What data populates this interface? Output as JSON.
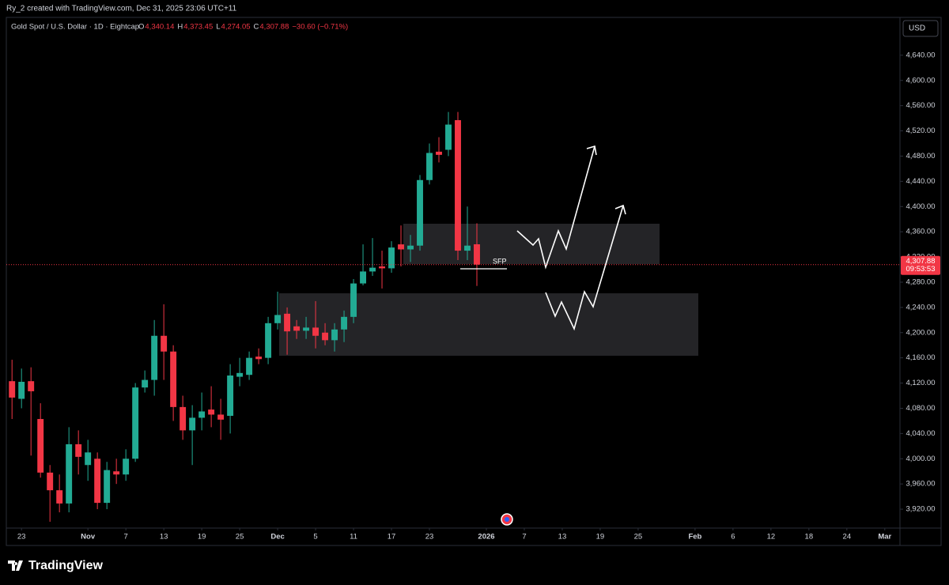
{
  "header": {
    "author": "Ry_2 created with TradingView.com, Dec 31, 2025 23:06 UTC+11",
    "symbol": "Gold Spot / U.S. Dollar · 1D · Eightcap",
    "ohlc": [
      {
        "key": "O",
        "value": "4,340.14"
      },
      {
        "key": "H",
        "value": "4,373.45"
      },
      {
        "key": "L",
        "value": "4,274.05"
      },
      {
        "key": "C",
        "value": "4,307.88"
      }
    ],
    "change": "−30.60 (−0.71%)",
    "currency": "USD"
  },
  "chart_data": {
    "type": "candlestick",
    "x": [
      0,
      1,
      2,
      3,
      4,
      5,
      6,
      7,
      8,
      9,
      10,
      11,
      12,
      13,
      14,
      15,
      16,
      17,
      18,
      19,
      20,
      21,
      22,
      23,
      24,
      25,
      26,
      27,
      28,
      29,
      30,
      31,
      32,
      33,
      34,
      35,
      36,
      37,
      38,
      39,
      40,
      41,
      42,
      43,
      44,
      45,
      46,
      47,
      48,
      49
    ],
    "open": [
      4123,
      4095,
      4123,
      4063,
      3978,
      3950,
      3929,
      4023,
      3990,
      4000,
      3930,
      3980,
      3975,
      4000,
      4113,
      4125,
      4195,
      4170,
      4082,
      4045,
      4065,
      4078,
      4070,
      4068,
      4130,
      4133,
      4162,
      4160,
      4215,
      4230,
      4210,
      4203,
      4208,
      4200,
      4188,
      4205,
      4225,
      4278,
      4297,
      4305,
      4302,
      4340,
      4332,
      4338,
      4442,
      4487,
      4490,
      4537,
      4330,
      4340.14
    ],
    "high": [
      4157,
      4143,
      4145,
      4088,
      3990,
      3975,
      4050,
      4045,
      4030,
      4010,
      3995,
      4000,
      4015,
      4120,
      4140,
      4220,
      4245,
      4180,
      4100,
      4085,
      4105,
      4115,
      4095,
      4150,
      4160,
      4170,
      4175,
      4225,
      4265,
      4240,
      4220,
      4225,
      4250,
      4215,
      4215,
      4235,
      4285,
      4340,
      4350,
      4330,
      4345,
      4370,
      4355,
      4450,
      4500,
      4510,
      4550,
      4550,
      4400,
      4373.45
    ],
    "low": [
      4063,
      4080,
      4005,
      3970,
      3900,
      3915,
      3915,
      3975,
      3965,
      3920,
      3920,
      3960,
      3965,
      3995,
      4105,
      4100,
      4125,
      4060,
      4030,
      3990,
      4045,
      4050,
      4030,
      4040,
      4115,
      4125,
      4150,
      4150,
      4205,
      4165,
      4190,
      4190,
      4175,
      4180,
      4170,
      4185,
      4215,
      4275,
      4290,
      4270,
      4295,
      4305,
      4312,
      4330,
      4435,
      4470,
      4480,
      4315,
      4315,
      4274.05
    ],
    "close": [
      4097,
      4122,
      4107,
      3978,
      3950,
      3929,
      4023,
      4003,
      4010,
      3930,
      3982,
      3975,
      4000,
      4113,
      4125,
      4195,
      4170,
      4082,
      4045,
      4065,
      4075,
      4070,
      4062,
      4132,
      4136,
      4160,
      4158,
      4215,
      4228,
      4202,
      4203,
      4208,
      4195,
      4188,
      4205,
      4225,
      4278,
      4297,
      4303,
      4302,
      4335,
      4332,
      4338,
      4442,
      4485,
      4482,
      4530,
      4330,
      4338,
      4307.88
    ],
    "up_color": "#22ab94",
    "down_color": "#f23645",
    "xlim": [
      -0.6,
      93.6
    ],
    "xticks": [
      {
        "value": 1,
        "label": "23"
      },
      {
        "value": 8,
        "label": "Nov"
      },
      {
        "value": 12,
        "label": "7"
      },
      {
        "value": 16,
        "label": "13"
      },
      {
        "value": 20,
        "label": "19"
      },
      {
        "value": 24,
        "label": "25"
      },
      {
        "value": 28,
        "label": "Dec"
      },
      {
        "value": 32,
        "label": "5"
      },
      {
        "value": 36,
        "label": "11"
      },
      {
        "value": 40,
        "label": "17"
      },
      {
        "value": 44,
        "label": "23"
      },
      {
        "value": 50,
        "label": "2026"
      },
      {
        "value": 54,
        "label": "7"
      },
      {
        "value": 58,
        "label": "13"
      },
      {
        "value": 62,
        "label": "19"
      },
      {
        "value": 66,
        "label": "25"
      },
      {
        "value": 72,
        "label": "Feb"
      },
      {
        "value": 76,
        "label": "6"
      },
      {
        "value": 80,
        "label": "12"
      },
      {
        "value": 84,
        "label": "18"
      },
      {
        "value": 88,
        "label": "24"
      },
      {
        "value": 92,
        "label": "Mar"
      }
    ],
    "ylim": [
      3890,
      4700
    ],
    "yticks": [
      {
        "value": 3920,
        "label": "3,920.00"
      },
      {
        "value": 3960,
        "label": "3,960.00"
      },
      {
        "value": 4000,
        "label": "4,000.00"
      },
      {
        "value": 4040,
        "label": "4,040.00"
      },
      {
        "value": 4080,
        "label": "4,080.00"
      },
      {
        "value": 4120,
        "label": "4,120.00"
      },
      {
        "value": 4160,
        "label": "4,160.00"
      },
      {
        "value": 4200,
        "label": "4,200.00"
      },
      {
        "value": 4240,
        "label": "4,240.00"
      },
      {
        "value": 4280,
        "label": "4,280.00"
      },
      {
        "value": 4320,
        "label": "4,320.00"
      },
      {
        "value": 4360,
        "label": "4,360.00"
      },
      {
        "value": 4400,
        "label": "4,400.00"
      },
      {
        "value": 4440,
        "label": "4,440.00"
      },
      {
        "value": 4480,
        "label": "4,480.00"
      },
      {
        "value": 4520,
        "label": "4,520.00"
      },
      {
        "value": 4560,
        "label": "4,560.00"
      },
      {
        "value": 4600,
        "label": "4,600.00"
      },
      {
        "value": 4640,
        "label": "4,640.00"
      }
    ],
    "last_price": {
      "value": 4307.88,
      "label": "4,307.88"
    },
    "countdown": "09:53:53",
    "annotation": "SFP"
  },
  "footer": {
    "brand": "TradingView"
  }
}
